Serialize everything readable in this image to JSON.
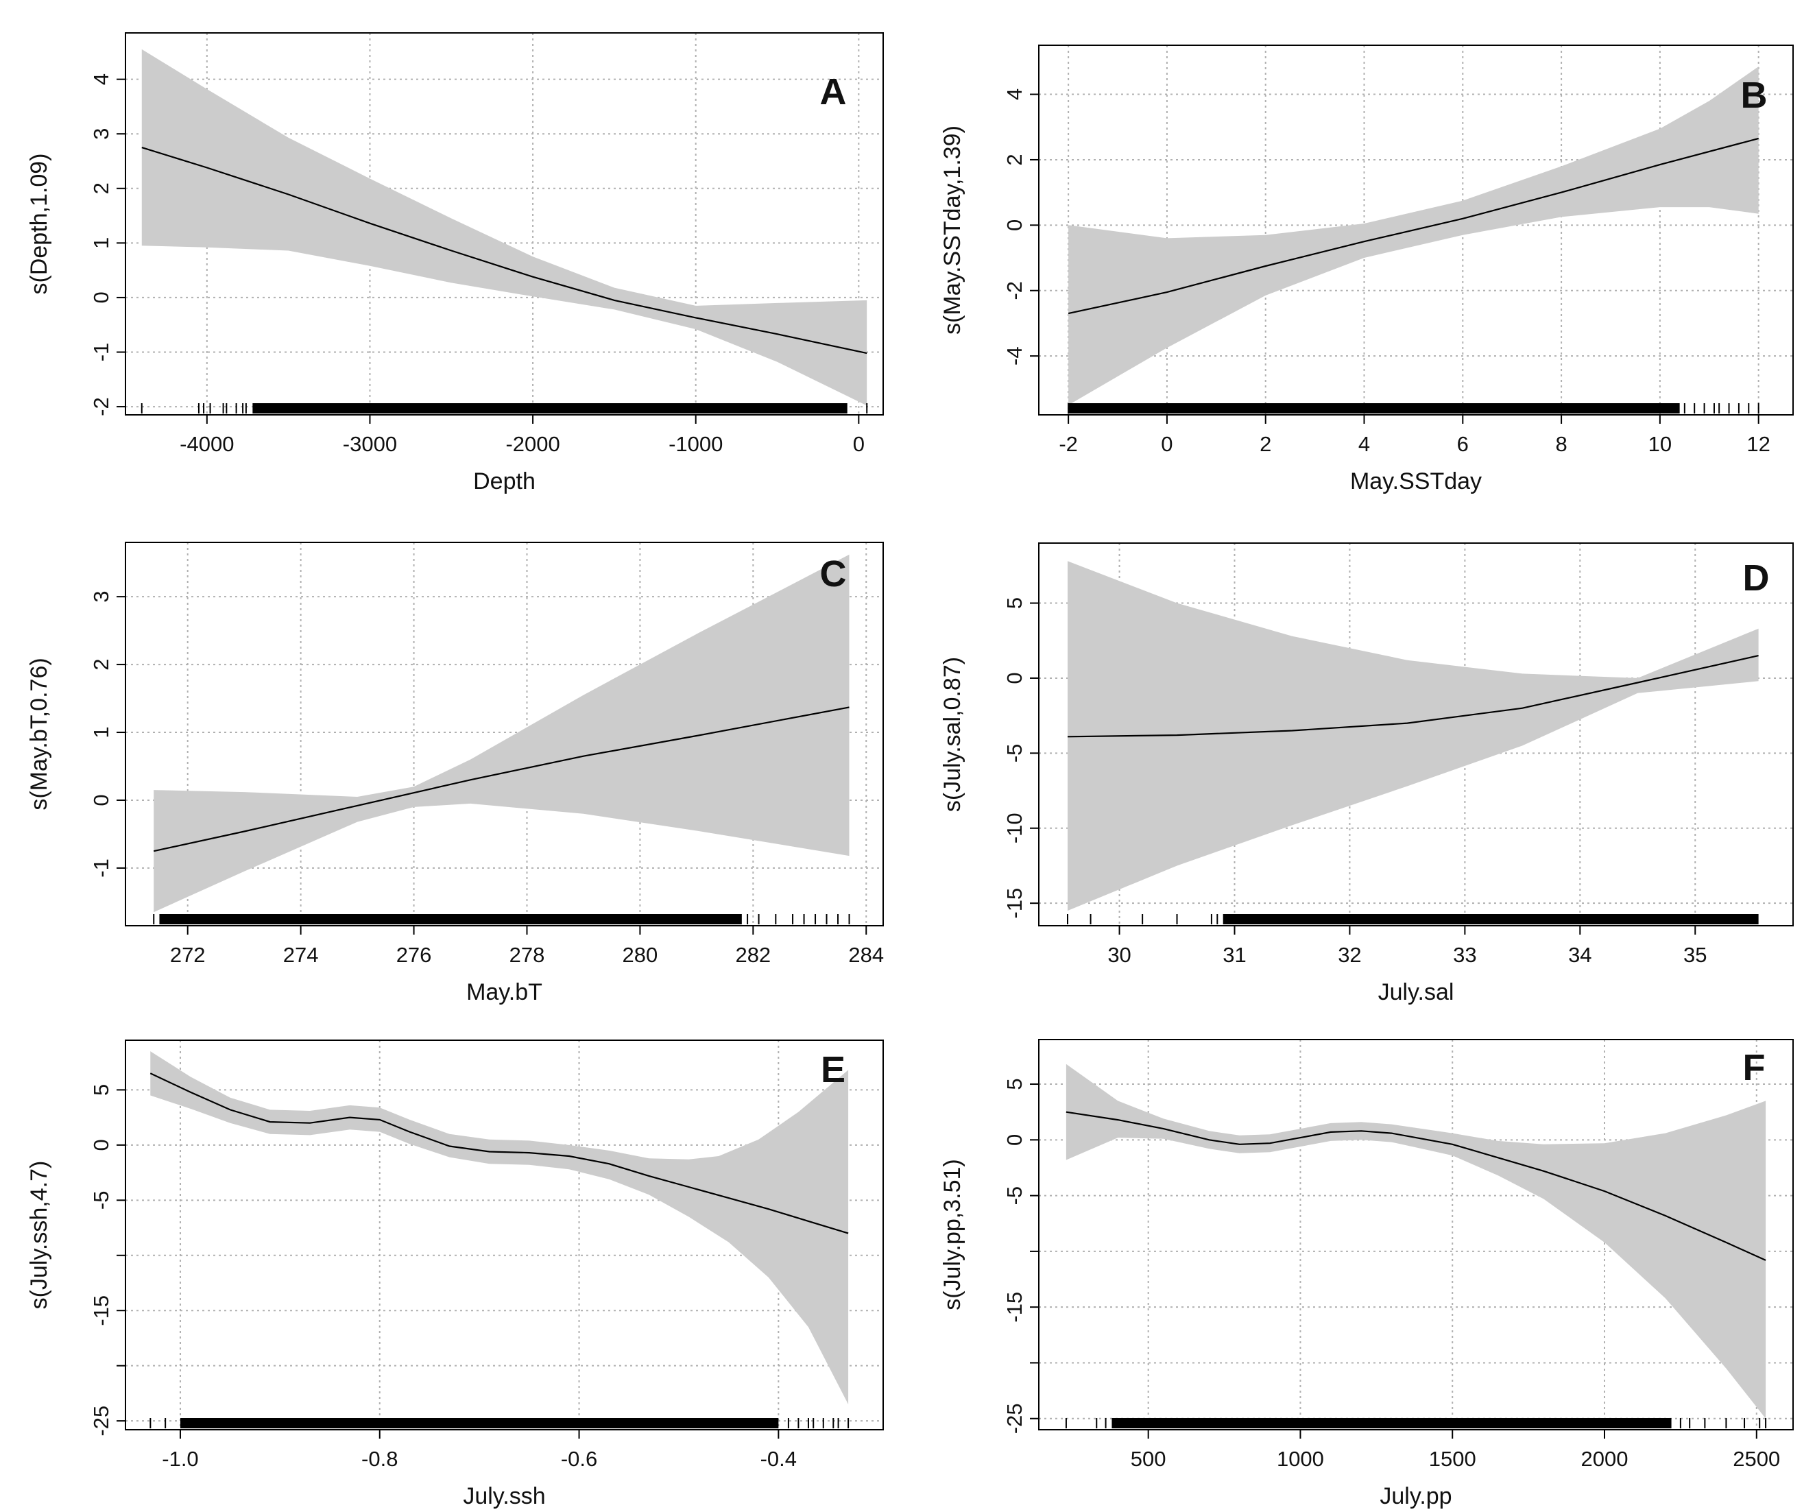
{
  "colors": {
    "band": "#cccccc",
    "line": "#000000",
    "grid": "#b0b0b0",
    "axis": "#000000",
    "rug": "#000000"
  },
  "chart_data": [
    {
      "type": "line",
      "letter": "A",
      "xlabel": "Depth",
      "ylabel": "s(Depth,1.09)",
      "xlim": [
        -4500,
        150
      ],
      "ylim": [
        -2.15,
        4.85
      ],
      "xticks": [
        -4000,
        -3000,
        -2000,
        -1000,
        0
      ],
      "xtick_labels": [
        "-4000",
        "-3000",
        "-2000",
        "-1000",
        "0"
      ],
      "yticks": [
        -2,
        -1,
        0,
        1,
        2,
        3,
        4
      ],
      "ytick_labels": [
        "-2",
        "-1",
        "0",
        "1",
        "2",
        "3",
        "4"
      ],
      "fit": {
        "x": [
          -4400,
          -4000,
          -3500,
          -3000,
          -2500,
          -2000,
          -1500,
          -1000,
          -500,
          50
        ],
        "y": [
          2.75,
          2.38,
          1.89,
          1.36,
          0.86,
          0.38,
          -0.05,
          -0.37,
          -0.67,
          -1.02
        ]
      },
      "upper": {
        "x": [
          -4400,
          -4000,
          -3500,
          -3000,
          -2500,
          -2000,
          -1500,
          -1000,
          -500,
          50
        ],
        "y": [
          4.55,
          3.82,
          2.93,
          2.18,
          1.45,
          0.75,
          0.18,
          -0.15,
          -0.1,
          -0.05
        ]
      },
      "lower": {
        "x": [
          -4400,
          -4000,
          -3500,
          -3000,
          -2500,
          -2000,
          -1500,
          -1000,
          -500,
          50
        ],
        "y": [
          0.95,
          0.92,
          0.86,
          0.58,
          0.27,
          0.02,
          -0.22,
          -0.58,
          -1.18,
          -1.98
        ]
      },
      "rug": {
        "sparse": [
          -4400,
          -4050,
          -4020,
          -3980,
          -3900,
          -3880,
          -3820,
          -3780,
          -3760,
          50
        ],
        "dense_from": -3720,
        "dense_to": -70
      }
    },
    {
      "type": "line",
      "letter": "B",
      "xlabel": "May.SSTday",
      "ylabel": "s(May.SSTday,1.39)",
      "xlim": [
        -2.6,
        12.7
      ],
      "ylim": [
        -5.8,
        5.5
      ],
      "xticks": [
        -2,
        0,
        2,
        4,
        6,
        8,
        10,
        12
      ],
      "xtick_labels": [
        "-2",
        "0",
        "2",
        "4",
        "6",
        "8",
        "10",
        "12"
      ],
      "yticks": [
        -4,
        -2,
        0,
        2,
        4
      ],
      "ytick_labels": [
        "-4",
        "-2",
        "0",
        "2",
        "4"
      ],
      "fit": {
        "x": [
          -2,
          0,
          2,
          4,
          6,
          8,
          10,
          12
        ],
        "y": [
          -2.7,
          -2.05,
          -1.25,
          -0.5,
          0.2,
          1.0,
          1.85,
          2.65
        ]
      },
      "upper": {
        "x": [
          -2,
          0,
          2,
          4,
          6,
          8,
          10,
          11,
          12
        ],
        "y": [
          0.0,
          -0.4,
          -0.3,
          0.05,
          0.75,
          1.8,
          2.95,
          3.8,
          4.85
        ]
      },
      "lower": {
        "x": [
          -2,
          0,
          2,
          4,
          6,
          8,
          10,
          11,
          12
        ],
        "y": [
          -5.5,
          -3.75,
          -2.15,
          -1.0,
          -0.3,
          0.25,
          0.55,
          0.55,
          0.35
        ]
      },
      "rug": {
        "sparse": [
          -2,
          10.5,
          10.7,
          10.9,
          11.1,
          11.2,
          11.4,
          11.6,
          11.8,
          12.0
        ],
        "dense_from": -2,
        "dense_to": 10.4
      }
    },
    {
      "type": "line",
      "letter": "C",
      "xlabel": "May.bT",
      "ylabel": "s(May.bT,0.76)",
      "xlim": [
        270.9,
        284.3
      ],
      "ylim": [
        -1.85,
        3.8
      ],
      "xticks": [
        272,
        274,
        276,
        278,
        280,
        282,
        284
      ],
      "xtick_labels": [
        "272",
        "274",
        "276",
        "278",
        "280",
        "282",
        "284"
      ],
      "yticks": [
        -1,
        0,
        1,
        2,
        3
      ],
      "ytick_labels": [
        "-1",
        "0",
        "1",
        "2",
        "3"
      ],
      "fit": {
        "x": [
          271.4,
          273,
          275,
          277,
          279,
          281,
          283.7
        ],
        "y": [
          -0.75,
          -0.46,
          -0.08,
          0.3,
          0.65,
          0.95,
          1.37
        ]
      },
      "upper": {
        "x": [
          271.4,
          273,
          275,
          276,
          277,
          279,
          281,
          283.7
        ],
        "y": [
          0.15,
          0.12,
          0.05,
          0.2,
          0.6,
          1.55,
          2.45,
          3.62
        ]
      },
      "lower": {
        "x": [
          271.4,
          273,
          275,
          276,
          277,
          279,
          281,
          283.7
        ],
        "y": [
          -1.65,
          -1.05,
          -0.32,
          -0.1,
          -0.05,
          -0.2,
          -0.45,
          -0.82
        ]
      },
      "rug": {
        "sparse": [
          271.4,
          281.9,
          282.1,
          282.4,
          282.7,
          282.9,
          283.1,
          283.3,
          283.5,
          283.7
        ],
        "dense_from": 271.5,
        "dense_to": 281.8
      }
    },
    {
      "type": "line",
      "letter": "D",
      "xlabel": "July.sal",
      "ylabel": "s(July.sal,0.87)",
      "xlim": [
        29.3,
        35.85
      ],
      "ylim": [
        -16.5,
        9.0
      ],
      "xticks": [
        30,
        31,
        32,
        33,
        34,
        35
      ],
      "xtick_labels": [
        "30",
        "31",
        "32",
        "33",
        "34",
        "35"
      ],
      "yticks": [
        -15,
        -10,
        -5,
        0,
        5
      ],
      "ytick_labels": [
        "-15",
        "-10",
        "-5",
        "0",
        "5"
      ],
      "fit": {
        "x": [
          29.55,
          30.5,
          31.5,
          32.5,
          33.5,
          34.5,
          35.55
        ],
        "y": [
          -3.9,
          -3.8,
          -3.5,
          -3.0,
          -2.0,
          -0.3,
          1.5
        ]
      },
      "upper": {
        "x": [
          29.55,
          30.5,
          31.5,
          32.5,
          33.5,
          34.5,
          35.55
        ],
        "y": [
          7.8,
          5.0,
          2.8,
          1.2,
          0.3,
          0.0,
          3.3
        ]
      },
      "lower": {
        "x": [
          29.55,
          30.5,
          31.5,
          32.5,
          33.5,
          34.5,
          35.55
        ],
        "y": [
          -15.5,
          -12.5,
          -9.8,
          -7.2,
          -4.5,
          -1.0,
          -0.2
        ]
      },
      "rug": {
        "sparse": [
          29.55,
          29.75,
          30.2,
          30.5,
          30.8,
          30.85
        ],
        "dense_from": 30.9,
        "dense_to": 35.55
      }
    },
    {
      "type": "line",
      "letter": "E",
      "xlabel": "July.ssh",
      "ylabel": "s(July.ssh,4.7)",
      "xlim": [
        -1.055,
        -0.295
      ],
      "ylim": [
        -25.8,
        9.5
      ],
      "xticks": [
        -1.0,
        -0.8,
        -0.6,
        -0.4
      ],
      "xtick_labels": [
        "-1.0",
        "-0.8",
        "-0.6",
        "-0.4"
      ],
      "yticks": [
        -25,
        -20,
        -15,
        -10,
        -5,
        0,
        5
      ],
      "ytick_labels": [
        "-25",
        "",
        "-15",
        "",
        "-5",
        "0",
        "5"
      ],
      "fit": {
        "x": [
          -1.03,
          -0.99,
          -0.95,
          -0.91,
          -0.87,
          -0.83,
          -0.8,
          -0.77,
          -0.73,
          -0.69,
          -0.65,
          -0.61,
          -0.57,
          -0.53,
          -0.49,
          -0.45,
          -0.41,
          -0.37,
          -0.33
        ],
        "y": [
          6.5,
          4.8,
          3.2,
          2.1,
          2.0,
          2.5,
          2.3,
          1.2,
          -0.1,
          -0.6,
          -0.7,
          -1.0,
          -1.7,
          -2.8,
          -3.8,
          -4.8,
          -5.8,
          -6.9,
          -8.0
        ]
      },
      "upper": {
        "x": [
          -1.03,
          -0.99,
          -0.95,
          -0.91,
          -0.87,
          -0.83,
          -0.8,
          -0.77,
          -0.73,
          -0.69,
          -0.65,
          -0.61,
          -0.57,
          -0.53,
          -0.49,
          -0.46,
          -0.42,
          -0.38,
          -0.33
        ],
        "y": [
          8.5,
          6.2,
          4.3,
          3.2,
          3.1,
          3.6,
          3.4,
          2.3,
          1.0,
          0.5,
          0.4,
          0.0,
          -0.5,
          -1.2,
          -1.3,
          -1.0,
          0.5,
          3.0,
          6.8
        ]
      },
      "lower": {
        "x": [
          -1.03,
          -0.99,
          -0.95,
          -0.91,
          -0.87,
          -0.83,
          -0.8,
          -0.77,
          -0.73,
          -0.69,
          -0.65,
          -0.61,
          -0.57,
          -0.53,
          -0.49,
          -0.45,
          -0.41,
          -0.37,
          -0.33
        ],
        "y": [
          4.5,
          3.3,
          2.0,
          1.0,
          0.9,
          1.4,
          1.2,
          0.1,
          -1.1,
          -1.7,
          -1.8,
          -2.2,
          -3.1,
          -4.5,
          -6.5,
          -8.8,
          -12.0,
          -16.5,
          -23.5
        ]
      },
      "rug": {
        "sparse": [
          -1.03,
          -1.015,
          -0.39,
          -0.38,
          -0.37,
          -0.365,
          -0.355,
          -0.345,
          -0.34,
          -0.33
        ],
        "dense_from": -1.0,
        "dense_to": -0.4
      }
    },
    {
      "type": "line",
      "letter": "F",
      "xlabel": "July.pp",
      "ylabel": "s(July.pp,3.51)",
      "xlim": [
        140,
        2620
      ],
      "ylim": [
        -26.0,
        9.0
      ],
      "xticks": [
        500,
        1000,
        1500,
        2000,
        2500
      ],
      "xtick_labels": [
        "500",
        "1000",
        "1500",
        "2000",
        "2500"
      ],
      "yticks": [
        -25,
        -20,
        -15,
        -10,
        -5,
        0,
        5
      ],
      "ytick_labels": [
        "-25",
        "",
        "-15",
        "",
        "-5",
        "0",
        "5"
      ],
      "fit": {
        "x": [
          230,
          400,
          550,
          700,
          800,
          900,
          1000,
          1100,
          1200,
          1300,
          1400,
          1500,
          1650,
          1800,
          2000,
          2200,
          2400,
          2530
        ],
        "y": [
          2.5,
          1.8,
          1.0,
          0.0,
          -0.4,
          -0.3,
          0.2,
          0.7,
          0.8,
          0.6,
          0.1,
          -0.4,
          -1.6,
          -2.8,
          -4.6,
          -6.8,
          -9.2,
          -10.8
        ]
      },
      "upper": {
        "x": [
          230,
          400,
          550,
          700,
          800,
          900,
          1000,
          1100,
          1200,
          1300,
          1400,
          1500,
          1650,
          1800,
          2000,
          2200,
          2400,
          2530
        ],
        "y": [
          6.8,
          3.5,
          1.9,
          0.8,
          0.4,
          0.5,
          1.0,
          1.5,
          1.6,
          1.4,
          1.0,
          0.6,
          -0.1,
          -0.4,
          -0.3,
          0.6,
          2.2,
          3.5
        ]
      },
      "lower": {
        "x": [
          230,
          400,
          550,
          700,
          800,
          900,
          1000,
          1100,
          1200,
          1300,
          1400,
          1500,
          1650,
          1800,
          2000,
          2200,
          2400,
          2530
        ],
        "y": [
          -1.8,
          0.2,
          0.1,
          -0.8,
          -1.2,
          -1.1,
          -0.6,
          -0.1,
          0.0,
          -0.2,
          -0.8,
          -1.4,
          -3.2,
          -5.3,
          -9.2,
          -14.2,
          -20.5,
          -25.0
        ]
      },
      "rug": {
        "sparse": [
          230,
          330,
          360,
          2250,
          2280,
          2330,
          2400,
          2460,
          2510,
          2530
        ],
        "dense_from": 380,
        "dense_to": 2220
      }
    }
  ]
}
